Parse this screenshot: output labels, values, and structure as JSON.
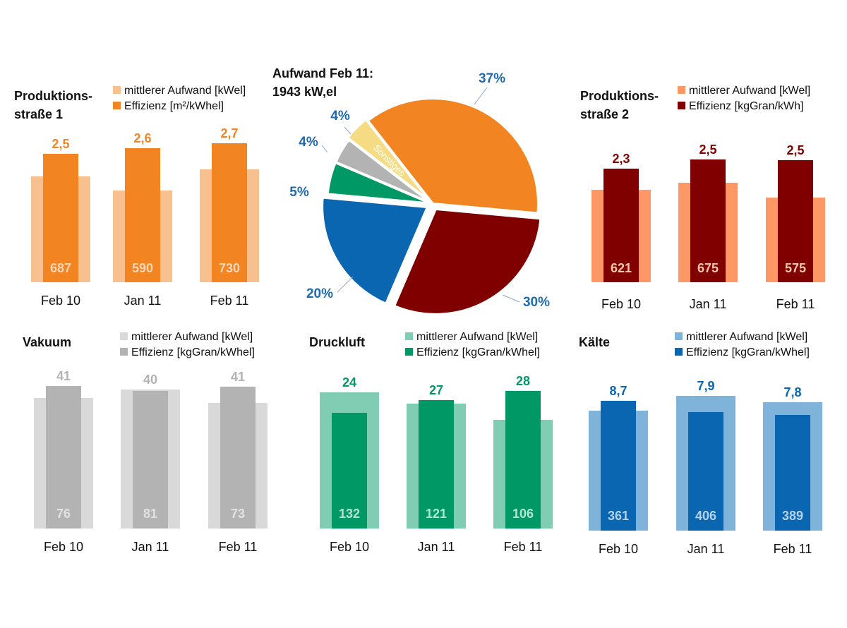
{
  "pie": {
    "title1": "Aufwand Feb 11:",
    "title2": "1943 kW,el",
    "slices": [
      {
        "label": "37%",
        "value": 37,
        "color": "#f28521",
        "name": "Produktionsstraße 1"
      },
      {
        "label": "30%",
        "value": 30,
        "color": "#800000",
        "name": "Produktionsstraße 2"
      },
      {
        "label": "20%",
        "value": 20,
        "color": "#0b66b2",
        "name": "Kälte"
      },
      {
        "label": "5%",
        "value": 5,
        "color": "#009966",
        "name": "Druckluft"
      },
      {
        "label": "4%",
        "value": 4,
        "color": "#b3b3b3",
        "name": "Vakuum"
      },
      {
        "label": "4%",
        "value": 4,
        "color": "#f5dc84",
        "name": "Sonstiges",
        "inside_label": "Sonstiges"
      }
    ]
  },
  "chart_data": [
    {
      "type": "bar",
      "title": "Produktions-\nstraße 1",
      "title_lines": [
        "Produktions-",
        "straße 1"
      ],
      "categories": [
        "Feb 10",
        "Jan 11",
        "Feb 11"
      ],
      "series": [
        {
          "name": "mittlerer Aufwand [kWel]",
          "values": [
            687,
            590,
            730
          ],
          "color": "#f9c08f"
        },
        {
          "name": "Effizienz [m²/kWhel]",
          "values": [
            2.5,
            2.6,
            2.7
          ],
          "labels": [
            "2,5",
            "2,6",
            "2,7"
          ],
          "color": "#f28521"
        }
      ],
      "top_label_color": "#f28521",
      "bottom_label_color": "#fbd6b4"
    },
    {
      "type": "bar",
      "title": "Produktions-\nstraße 2",
      "title_lines": [
        "Produktions-",
        "straße 2"
      ],
      "categories": [
        "Feb 10",
        "Jan 11",
        "Feb 11"
      ],
      "series": [
        {
          "name": "mittlerer Aufwand [kWel]",
          "values": [
            621,
            675,
            575
          ],
          "color": "#fd9866"
        },
        {
          "name": "Effizienz [kgGran/kWh]",
          "values": [
            2.3,
            2.5,
            2.5
          ],
          "labels": [
            "2,3",
            "2,5",
            "2,5"
          ],
          "color": "#800000"
        }
      ],
      "top_label_color": "#800000",
      "bottom_label_color": "#fbc9a8"
    },
    {
      "type": "bar",
      "title": "Vakuum",
      "title_lines": [
        "Vakuum"
      ],
      "categories": [
        "Feb 10",
        "Jan 11",
        "Feb 11"
      ],
      "series": [
        {
          "name": "mittlerer Aufwand [kWel]",
          "values": [
            76,
            81,
            73
          ],
          "color": "#d9d9d9"
        },
        {
          "name": "Effizienz [kgGran/kWhel]",
          "values": [
            41,
            40,
            41
          ],
          "labels": [
            "41",
            "40",
            "41"
          ],
          "color": "#b3b3b3"
        }
      ],
      "top_label_color": "#b3b3b3",
      "bottom_label_color": "#e2e2e2"
    },
    {
      "type": "bar",
      "title": "Druckluft",
      "title_lines": [
        "Druckluft"
      ],
      "categories": [
        "Feb 10",
        "Jan 11",
        "Feb 11"
      ],
      "series": [
        {
          "name": "mittlerer Aufwand [kWel]",
          "values": [
            132,
            121,
            106
          ],
          "color": "#80cdb3"
        },
        {
          "name": "Effizienz [kgGran/kWhel]",
          "values": [
            24,
            27,
            28
          ],
          "labels": [
            "24",
            "27",
            "28"
          ],
          "color": "#009966"
        }
      ],
      "top_label_color": "#009966",
      "bottom_label_color": "#b3e3d3"
    },
    {
      "type": "bar",
      "title": "Kälte",
      "title_lines": [
        "Kälte"
      ],
      "categories": [
        "Feb 10",
        "Jan 11",
        "Feb 11"
      ],
      "series": [
        {
          "name": "mittlerer Aufwand [kWel]",
          "values": [
            361,
            406,
            389
          ],
          "color": "#80b3d9"
        },
        {
          "name": "Effizienz [kgGran/kWhel]",
          "values": [
            8.7,
            7.9,
            7.8
          ],
          "labels": [
            "8,7",
            "7,9",
            "7,8"
          ],
          "color": "#0b66b2"
        }
      ],
      "top_label_color": "#0b66b2",
      "bottom_label_color": "#b3d1ea"
    }
  ]
}
